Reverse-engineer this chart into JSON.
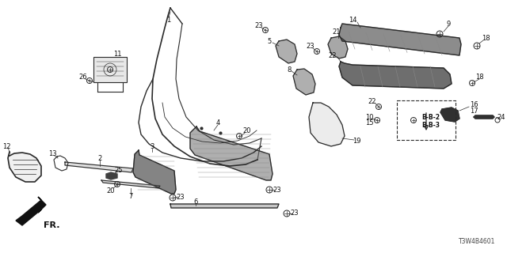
{
  "background_color": "#ffffff",
  "diagram_id": "T3W4B4601",
  "fig_width": 6.4,
  "fig_height": 3.2,
  "dpi": 100,
  "line_color": "#2a2a2a",
  "label_fontsize": 6.0,
  "label_color": "#111111"
}
